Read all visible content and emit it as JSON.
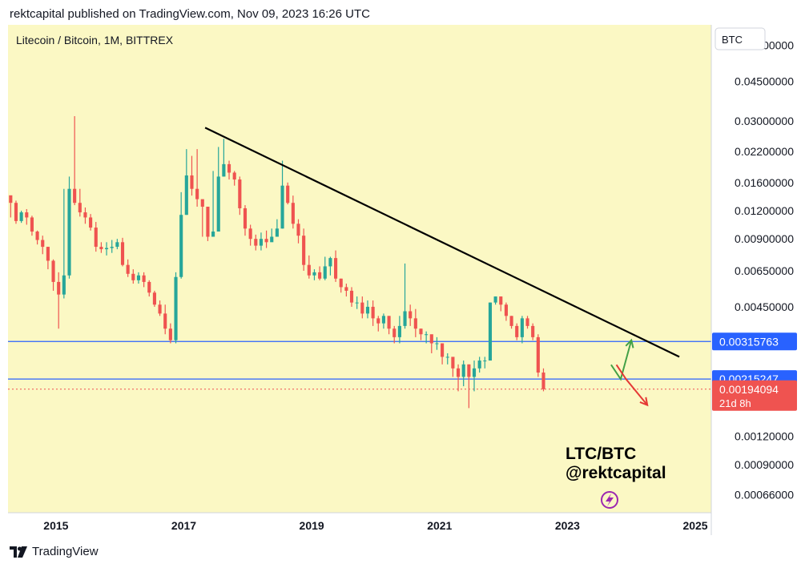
{
  "header": {
    "text": "rektcapital published on TradingView.com, Nov 09, 2023 16:26 UTC"
  },
  "footer": {
    "brand": "TradingView",
    "logo_icon": "tradingview-logo-icon"
  },
  "colors": {
    "background": "#fbf8c4",
    "up": "#26a69a",
    "down": "#ef5350",
    "hline": "#2962ff",
    "trendline": "#000000"
  },
  "chart_data": {
    "type": "candlestick",
    "title": "Litecoin / Bitcoin, 1M, BITTREX",
    "currency_label": "BTC",
    "y_scale": "log",
    "ylim": [
      0.00055,
      0.08
    ],
    "xlim": [
      "2014-04",
      "2025-04"
    ],
    "y_ticks": [
      "0.06500000",
      "0.04500000",
      "0.03000000",
      "0.02200000",
      "0.01600000",
      "0.01200000",
      "0.00900000",
      "0.00650000",
      "0.00450000",
      "0.00120000",
      "0.00090000",
      "0.00066000"
    ],
    "x_ticks": [
      "2015",
      "2017",
      "2019",
      "2021",
      "2023",
      "2025"
    ],
    "x_tick_values": [
      "2015-01",
      "2017-01",
      "2019-01",
      "2021-01",
      "2023-01",
      "2025-01"
    ],
    "start_month": "2014-04",
    "closes": [
      0.013,
      0.0108,
      0.0118,
      0.0112,
      0.0097,
      0.0089,
      0.0083,
      0.0072,
      0.0058,
      0.0051,
      0.0062,
      0.015,
      0.013,
      0.0118,
      0.0112,
      0.0101,
      0.0083,
      0.0081,
      0.0082,
      0.0083,
      0.0087,
      0.0069,
      0.0063,
      0.0059,
      0.0062,
      0.0058,
      0.0052,
      0.0046,
      0.0042,
      0.0036,
      0.0032,
      0.0061,
      0.0115,
      0.0172,
      0.015,
      0.0135,
      0.0125,
      0.0092,
      0.0097,
      0.017,
      0.0193,
      0.0177,
      0.0165,
      0.0123,
      0.01,
      0.009,
      0.0084,
      0.009,
      0.0087,
      0.0092,
      0.01,
      0.0155,
      0.013,
      0.0105,
      0.0093,
      0.0069,
      0.0062,
      0.0064,
      0.006,
      0.0068,
      0.0074,
      0.006,
      0.0055,
      0.0053,
      0.0047,
      0.0047,
      0.0042,
      0.0045,
      0.004,
      0.0038,
      0.0041,
      0.0036,
      0.0033,
      0.0037,
      0.0043,
      0.004,
      0.0036,
      0.0034,
      0.0034,
      0.0031,
      0.0031,
      0.0027,
      0.0027,
      0.0024,
      0.0022,
      0.0025,
      0.0022,
      0.0024,
      0.0026,
      0.0026,
      0.0047,
      0.005,
      0.0046,
      0.0041,
      0.0037,
      0.0033,
      0.004,
      0.0037,
      0.0033,
      0.0023,
      0.00194
    ],
    "wicks": [
      [
        0.0112,
        0.013
      ],
      [
        0.0105,
        0.0133
      ],
      [
        0.0106,
        0.012
      ],
      [
        0.0104,
        0.0122
      ],
      [
        0.0093,
        0.0114
      ],
      [
        0.0085,
        0.0098
      ],
      [
        0.0077,
        0.0093
      ],
      [
        0.0066,
        0.0083
      ],
      [
        0.0053,
        0.0073
      ],
      [
        0.0036,
        0.0064
      ],
      [
        0.0049,
        0.015
      ],
      [
        0.006,
        0.017
      ],
      [
        0.0127,
        0.0315
      ],
      [
        0.0113,
        0.015
      ],
      [
        0.0105,
        0.0124
      ],
      [
        0.0098,
        0.0116
      ],
      [
        0.0079,
        0.0107
      ],
      [
        0.0078,
        0.0087
      ],
      [
        0.0076,
        0.0087
      ],
      [
        0.0078,
        0.0089
      ],
      [
        0.0081,
        0.009
      ],
      [
        0.0068,
        0.0091
      ],
      [
        0.0061,
        0.0073
      ],
      [
        0.0057,
        0.0066
      ],
      [
        0.0057,
        0.0064
      ],
      [
        0.0055,
        0.0064
      ],
      [
        0.005,
        0.0059
      ],
      [
        0.0045,
        0.0053
      ],
      [
        0.0041,
        0.0048
      ],
      [
        0.0034,
        0.0046
      ],
      [
        0.0031,
        0.0038
      ],
      [
        0.0031,
        0.0064
      ],
      [
        0.006,
        0.0145
      ],
      [
        0.0115,
        0.0225
      ],
      [
        0.014,
        0.021
      ],
      [
        0.0125,
        0.0225
      ],
      [
        0.0092,
        0.0132
      ],
      [
        0.0088,
        0.01
      ],
      [
        0.0092,
        0.018
      ],
      [
        0.0165,
        0.023
      ],
      [
        0.017,
        0.025
      ],
      [
        0.0165,
        0.02
      ],
      [
        0.0155,
        0.018
      ],
      [
        0.0115,
        0.017
      ],
      [
        0.0093,
        0.0127
      ],
      [
        0.0084,
        0.0104
      ],
      [
        0.008,
        0.0094
      ],
      [
        0.008,
        0.0096
      ],
      [
        0.0082,
        0.0098
      ],
      [
        0.0089,
        0.01
      ],
      [
        0.0097,
        0.011
      ],
      [
        0.01,
        0.02
      ],
      [
        0.0128,
        0.016
      ],
      [
        0.01,
        0.014
      ],
      [
        0.0086,
        0.011
      ],
      [
        0.0065,
        0.01
      ],
      [
        0.006,
        0.0076
      ],
      [
        0.0059,
        0.0066
      ],
      [
        0.0059,
        0.0068
      ],
      [
        0.0059,
        0.0075
      ],
      [
        0.0062,
        0.0075
      ],
      [
        0.0058,
        0.008
      ],
      [
        0.0052,
        0.006
      ],
      [
        0.005,
        0.0057
      ],
      [
        0.0045,
        0.0055
      ],
      [
        0.0044,
        0.005
      ],
      [
        0.004,
        0.005
      ],
      [
        0.004,
        0.0048
      ],
      [
        0.0037,
        0.0048
      ],
      [
        0.0035,
        0.0041
      ],
      [
        0.0036,
        0.0042
      ],
      [
        0.0034,
        0.0041
      ],
      [
        0.0031,
        0.0037
      ],
      [
        0.0031,
        0.0041
      ],
      [
        0.0036,
        0.007
      ],
      [
        0.0037,
        0.0046
      ],
      [
        0.0033,
        0.0044
      ],
      [
        0.0032,
        0.0036
      ],
      [
        0.0031,
        0.0035
      ],
      [
        0.0028,
        0.0033
      ],
      [
        0.0029,
        0.0033
      ],
      [
        0.0025,
        0.0031
      ],
      [
        0.0025,
        0.0028
      ],
      [
        0.0022,
        0.0026
      ],
      [
        0.0019,
        0.0025
      ],
      [
        0.002,
        0.0026
      ],
      [
        0.0016,
        0.0025
      ],
      [
        0.0019,
        0.0026
      ],
      [
        0.0023,
        0.0027
      ],
      [
        0.0024,
        0.0027
      ],
      [
        0.0026,
        0.0047
      ],
      [
        0.0046,
        0.005
      ],
      [
        0.0043,
        0.005
      ],
      [
        0.0039,
        0.0047
      ],
      [
        0.0036,
        0.0041
      ],
      [
        0.0032,
        0.0038
      ],
      [
        0.0031,
        0.0041
      ],
      [
        0.0036,
        0.0041
      ],
      [
        0.0032,
        0.0038
      ],
      [
        0.0022,
        0.0034
      ],
      [
        0.0019,
        0.0024
      ]
    ],
    "trendline": {
      "from": [
        "2017-05",
        0.028
      ],
      "to": [
        "2024-10",
        0.0027
      ]
    },
    "horizontal_lines": [
      {
        "value": 0.00315763,
        "label": "0.00315763"
      },
      {
        "value": 0.00215247,
        "label": "0.00215247"
      }
    ],
    "last_price": {
      "value": 0.00194094,
      "label": "0.00194094",
      "countdown": "21d 8h"
    },
    "scenario_up": {
      "from": [
        "2023-11",
        0.00215
      ],
      "to": [
        "2024-01",
        0.0032
      ]
    },
    "scenario_down": {
      "from": [
        "2023-12",
        0.00215
      ],
      "to": [
        "2024-04",
        0.00165
      ]
    },
    "annotation": {
      "line1": "LTC/BTC",
      "line2": "@rektcapital",
      "icon": "lightning-bolt-icon"
    }
  }
}
